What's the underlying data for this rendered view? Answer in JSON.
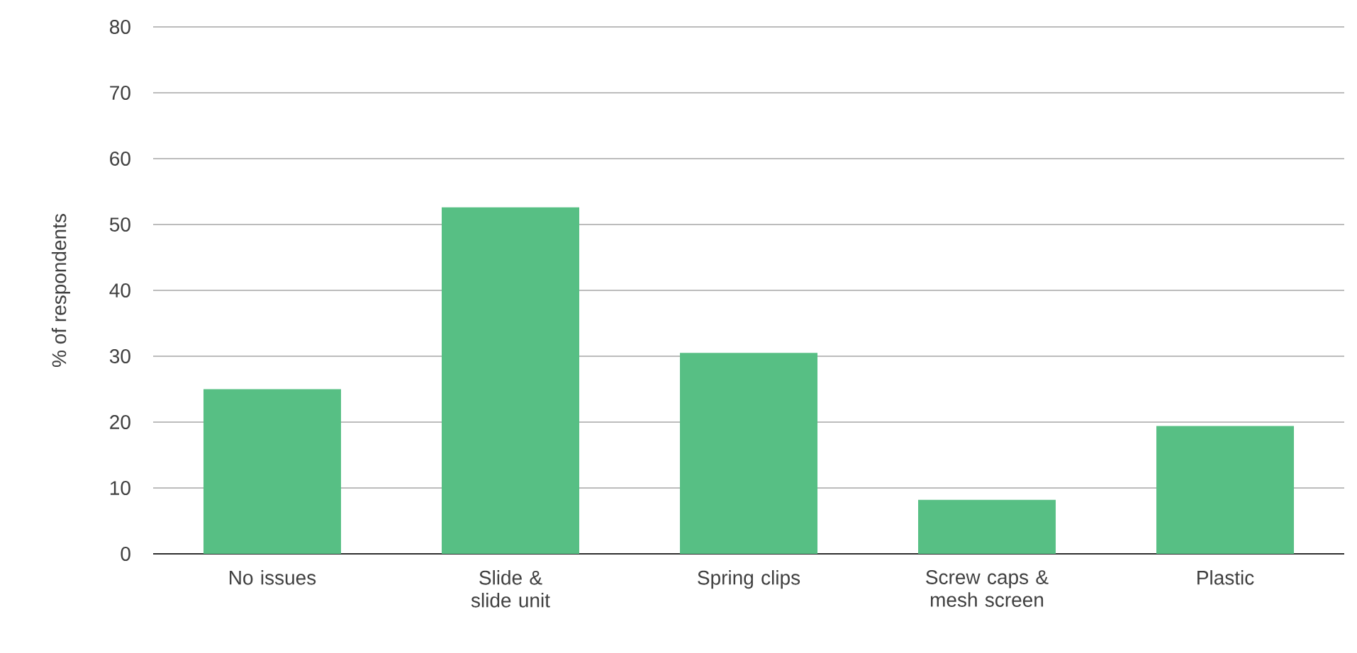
{
  "chart_data": {
    "type": "bar",
    "ylabel": "% of respondents",
    "categories": [
      "No issues",
      "Slide & slide unit",
      "Spring clips",
      "Screw caps & mesh screen",
      "Plastic"
    ],
    "values": [
      25,
      52.6,
      30.5,
      8.2,
      19.4
    ],
    "color": "#57bf84",
    "ylim": [
      0,
      80
    ],
    "yticks": [
      0,
      10,
      20,
      30,
      40,
      50,
      60,
      70,
      80
    ],
    "grid": "y"
  }
}
